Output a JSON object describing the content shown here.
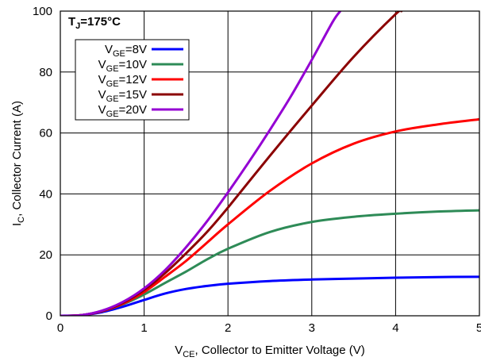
{
  "chart_data": {
    "type": "line",
    "xlabel": {
      "main": "V",
      "sub": "CE",
      "rest": ", Collector to Emitter Voltage (V)"
    },
    "ylabel": {
      "main": "I",
      "sub": "C",
      "rest": ", Collector Current (A)"
    },
    "annotation": {
      "main": "T",
      "sub": "J",
      "rest": "=175°C"
    },
    "xlim": [
      0,
      5
    ],
    "ylim": [
      0,
      100
    ],
    "xticks": [
      "0",
      "1",
      "2",
      "3",
      "4",
      "5"
    ],
    "yticks": [
      "0",
      "20",
      "40",
      "60",
      "80",
      "100"
    ],
    "grid": true,
    "legend_position": "top-left",
    "series": [
      {
        "name": {
          "main": "V",
          "sub": "GE",
          "rest": "=8V"
        },
        "color": "#0000ff",
        "points": [
          [
            0,
            0
          ],
          [
            0.25,
            0.2
          ],
          [
            0.5,
            1.2
          ],
          [
            0.75,
            3.0
          ],
          [
            1,
            5.2
          ],
          [
            1.25,
            7.3
          ],
          [
            1.5,
            8.8
          ],
          [
            1.75,
            9.8
          ],
          [
            2,
            10.5
          ],
          [
            2.5,
            11.4
          ],
          [
            3,
            11.9
          ],
          [
            3.5,
            12.2
          ],
          [
            4,
            12.5
          ],
          [
            4.5,
            12.7
          ],
          [
            5,
            12.8
          ]
        ]
      },
      {
        "name": {
          "main": "V",
          "sub": "GE",
          "rest": "=10V"
        },
        "color": "#2e8b57",
        "points": [
          [
            0,
            0
          ],
          [
            0.25,
            0.2
          ],
          [
            0.5,
            1.5
          ],
          [
            0.75,
            3.8
          ],
          [
            1,
            7.0
          ],
          [
            1.25,
            10.8
          ],
          [
            1.5,
            14.5
          ],
          [
            1.75,
            18.5
          ],
          [
            2,
            22.0
          ],
          [
            2.5,
            27.5
          ],
          [
            3,
            30.8
          ],
          [
            3.5,
            32.5
          ],
          [
            4,
            33.5
          ],
          [
            4.5,
            34.2
          ],
          [
            5,
            34.6
          ]
        ]
      },
      {
        "name": {
          "main": "V",
          "sub": "GE",
          "rest": "=12V"
        },
        "color": "#ff0000",
        "points": [
          [
            0,
            0
          ],
          [
            0.25,
            0.2
          ],
          [
            0.5,
            1.5
          ],
          [
            0.75,
            4.0
          ],
          [
            1,
            7.8
          ],
          [
            1.25,
            12.8
          ],
          [
            1.5,
            18.0
          ],
          [
            1.75,
            24.0
          ],
          [
            2,
            30.0
          ],
          [
            2.5,
            41.0
          ],
          [
            3,
            50.0
          ],
          [
            3.5,
            56.5
          ],
          [
            4,
            60.5
          ],
          [
            4.5,
            62.8
          ],
          [
            5,
            64.5
          ]
        ]
      },
      {
        "name": {
          "main": "V",
          "sub": "GE",
          "rest": "=15V"
        },
        "color": "#8b0000",
        "points": [
          [
            0,
            0
          ],
          [
            0.25,
            0.2
          ],
          [
            0.5,
            1.6
          ],
          [
            0.75,
            4.3
          ],
          [
            1,
            8.5
          ],
          [
            1.25,
            14.0
          ],
          [
            1.5,
            20.5
          ],
          [
            1.75,
            27.5
          ],
          [
            2,
            35.5
          ],
          [
            2.5,
            52.5
          ],
          [
            3,
            69.0
          ],
          [
            3.5,
            85.0
          ],
          [
            4,
            99.0
          ],
          [
            4.07,
            100
          ]
        ]
      },
      {
        "name": {
          "main": "V",
          "sub": "GE",
          "rest": "=20V"
        },
        "color": "#9400d3",
        "points": [
          [
            0,
            0
          ],
          [
            0.25,
            0.2
          ],
          [
            0.5,
            1.7
          ],
          [
            0.75,
            4.6
          ],
          [
            1,
            9.0
          ],
          [
            1.25,
            15.0
          ],
          [
            1.5,
            22.5
          ],
          [
            1.75,
            31.0
          ],
          [
            2,
            40.5
          ],
          [
            2.25,
            50.5
          ],
          [
            2.5,
            61.0
          ],
          [
            2.75,
            72.0
          ],
          [
            3,
            84.0
          ],
          [
            3.25,
            96.5
          ],
          [
            3.34,
            100
          ]
        ]
      }
    ]
  }
}
